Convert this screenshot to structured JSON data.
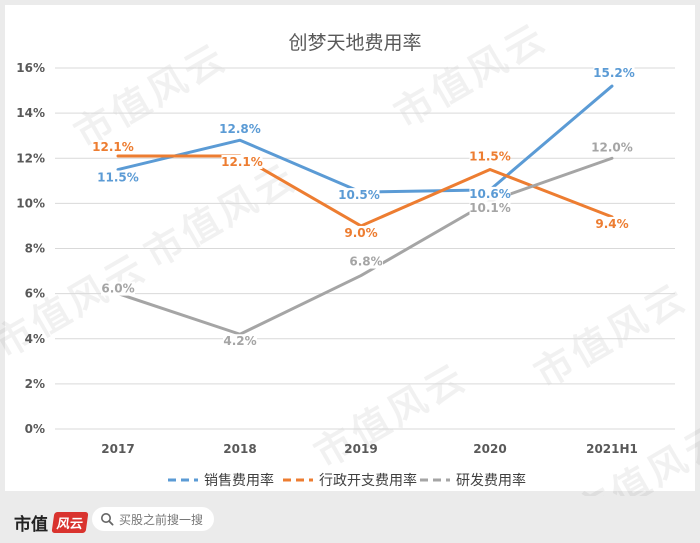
{
  "chart_data": {
    "type": "line",
    "title": "创梦天地费用率",
    "categories": [
      "2017",
      "2018",
      "2019",
      "2020",
      "2021H1"
    ],
    "ylim": [
      0,
      16
    ],
    "yticks": [
      "0%",
      "2%",
      "4%",
      "6%",
      "8%",
      "10%",
      "12%",
      "14%",
      "16%"
    ],
    "grid": true,
    "legend_position": "bottom",
    "series": [
      {
        "name": "销售费用率",
        "color": "#5b9bd5",
        "values": [
          11.5,
          12.8,
          10.5,
          10.6,
          15.2
        ],
        "labels": [
          "11.5%",
          "12.8%",
          "10.5%",
          "10.6%",
          "15.2%"
        ]
      },
      {
        "name": "行政开支费用率",
        "color": "#ed7d31",
        "values": [
          12.1,
          12.1,
          9.0,
          11.5,
          9.4
        ],
        "labels": [
          "12.1%",
          "12.1%",
          "9.0%",
          "11.5%",
          "9.4%"
        ]
      },
      {
        "name": "研发费用率",
        "color": "#a5a5a5",
        "values": [
          6.0,
          4.2,
          6.8,
          10.1,
          12.0
        ],
        "labels": [
          "6.0%",
          "4.2%",
          "6.8%",
          "10.1%",
          "12.0%"
        ]
      }
    ]
  },
  "watermark_text": "市值风云",
  "footer": {
    "brand_text": "市值",
    "brand_stamp": "风云",
    "search_placeholder": "买股之前搜一搜"
  }
}
